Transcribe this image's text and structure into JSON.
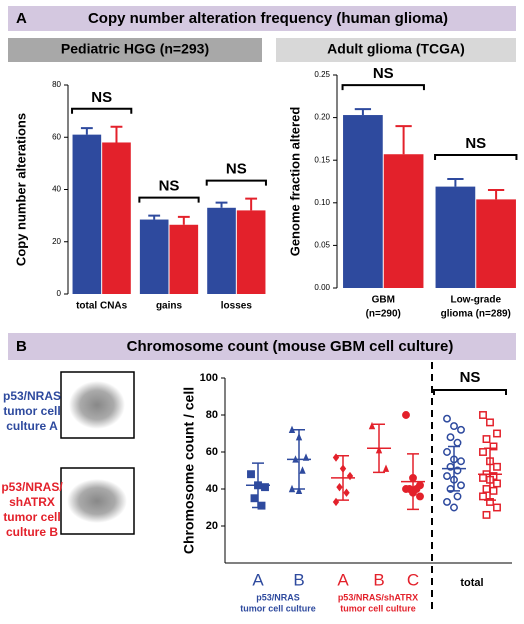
{
  "panel_a": {
    "label": "A",
    "title": "Copy number alteration frequency (human glioma)"
  },
  "panel_b": {
    "label": "B",
    "title": "Chromosome count  (mouse GBM cell culture)",
    "cell_lines": [
      {
        "lines": [
          "p53/NRAS",
          "tumor cell",
          "culture A"
        ],
        "color": "#2e4a9e"
      },
      {
        "lines": [
          "p53/NRAS/",
          "shATRX",
          "tumor cell",
          "culture B"
        ],
        "color": "#e3212b"
      }
    ]
  },
  "chart_data": [
    {
      "type": "bar",
      "title": "Pediatric HGG (n=293)",
      "ylabel": "Copy number alterations",
      "categories": [
        "total CNAs",
        "gains",
        "losses"
      ],
      "series": [
        {
          "color": "#2e4a9e",
          "values": [
            61,
            28.5,
            33
          ],
          "errors": [
            2.5,
            1.5,
            2
          ]
        },
        {
          "color": "#e3212b",
          "values": [
            58,
            26.5,
            32
          ],
          "errors": [
            6,
            3,
            4.5
          ]
        }
      ],
      "ylim": [
        0,
        80
      ],
      "yticks": [
        0,
        20,
        40,
        60,
        80
      ],
      "significance": [
        "NS",
        "NS",
        "NS"
      ]
    },
    {
      "type": "bar",
      "title": "Adult glioma (TCGA)",
      "ylabel": "Genome fraction altered",
      "categories": [
        [
          "GBM",
          "(n=290)"
        ],
        [
          "Low-grade",
          "glioma (n=289)"
        ]
      ],
      "series": [
        {
          "color": "#2e4a9e",
          "values": [
            0.203,
            0.119
          ],
          "errors": [
            0.007,
            0.009
          ]
        },
        {
          "color": "#e3212b",
          "values": [
            0.157,
            0.104
          ],
          "errors": [
            0.033,
            0.011
          ]
        }
      ],
      "ylim": [
        0,
        0.25
      ],
      "yticks": [
        {
          "value": 0,
          "label": "0.00"
        },
        {
          "value": 0.05,
          "label": "0.05"
        },
        {
          "value": 0.1,
          "label": "0.10"
        },
        {
          "value": 0.15,
          "label": "0.15"
        },
        {
          "value": 0.2,
          "label": "0.20"
        },
        {
          "value": 0.25,
          "label": "0.25"
        }
      ],
      "significance": [
        "NS",
        "NS"
      ]
    },
    {
      "type": "dotplot",
      "ylabel": "Chromosome count / cell",
      "ylim": [
        0,
        100
      ],
      "yticks": [
        20,
        40,
        60,
        80,
        100
      ],
      "annotation": "NS",
      "groups": [
        {
          "label": "A",
          "color": "#2e4a9e",
          "shape": "square",
          "values": [
            48,
            42,
            41,
            35,
            31
          ],
          "mean": 42,
          "error": 12
        },
        {
          "label": "B",
          "color": "#2e4a9e",
          "shape": "triangle",
          "values": [
            72,
            68,
            57,
            56,
            50,
            40,
            39
          ],
          "mean": 56,
          "error": 16
        },
        {
          "label": "A",
          "color": "#e3212b",
          "shape": "diamond",
          "values": [
            57,
            51,
            47,
            41,
            38,
            33
          ],
          "mean": 46,
          "error": 12
        },
        {
          "label": "B",
          "color": "#e3212b",
          "shape": "triangle",
          "values": [
            74,
            61,
            51
          ],
          "mean": 62,
          "error": 13
        },
        {
          "label": "C",
          "color": "#e3212b",
          "shape": "circle",
          "values": [
            80,
            46,
            42,
            40,
            40,
            40,
            38,
            36
          ],
          "mean": 44,
          "error": 15
        },
        {
          "label": "total",
          "color": "#2e4a9e",
          "shape": "open-circle",
          "values": [
            78,
            74,
            72,
            68,
            65,
            60,
            56,
            55,
            52,
            50,
            47,
            45,
            42,
            40,
            36,
            33,
            30
          ],
          "mean": 51,
          "error": 12
        },
        {
          "label": null,
          "color": "#e3212b",
          "shape": "open-square",
          "values": [
            80,
            76,
            70,
            67,
            63,
            60,
            55,
            52,
            48,
            47,
            46,
            45,
            43,
            40,
            39,
            36,
            33,
            30,
            26
          ],
          "mean": 48,
          "error": 14
        }
      ],
      "group_labels": [
        {
          "lines": [
            "p53/NRAS",
            "tumor cell culture"
          ],
          "color": "#2e4a9e"
        },
        {
          "lines": [
            "p53/NRAS/shATRX",
            "tumor cell culture"
          ],
          "color": "#e3212b"
        }
      ]
    }
  ]
}
